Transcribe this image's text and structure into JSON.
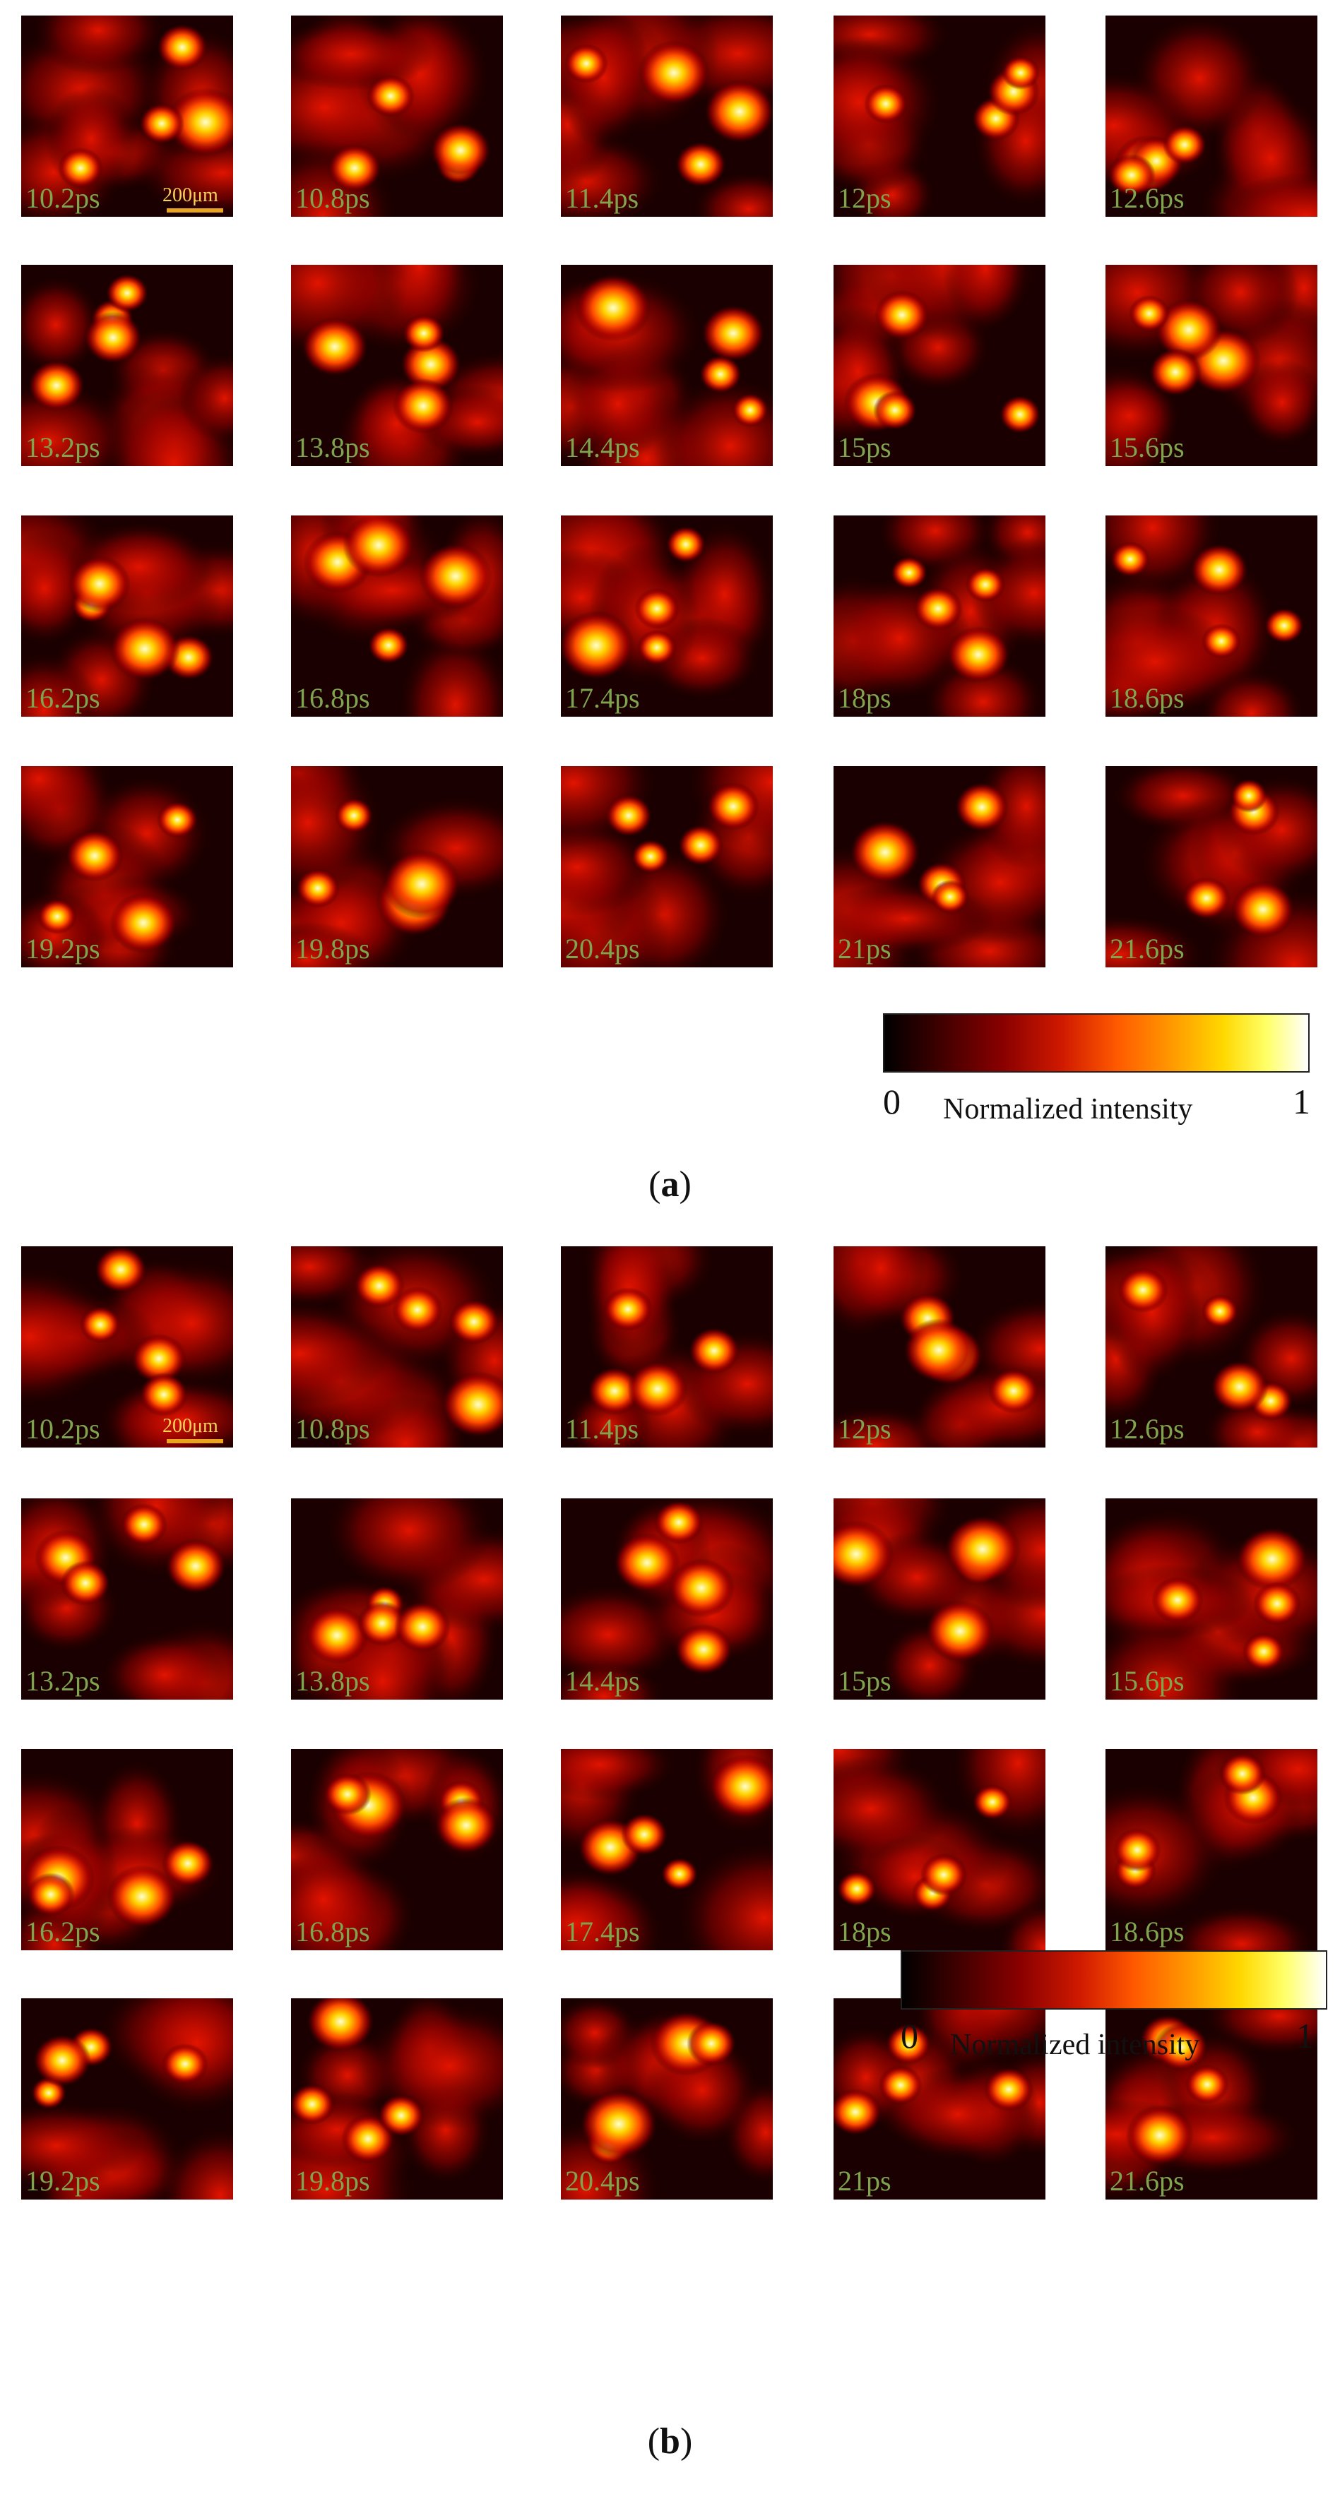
{
  "panel_a": {
    "caption_open": "(",
    "caption_letter": "a",
    "caption_close": ")",
    "scale_bar": "200μm",
    "frames": [
      "10.2ps",
      "10.8ps",
      "11.4ps",
      "12ps",
      "12.6ps",
      "13.2ps",
      "13.8ps",
      "14.4ps",
      "15ps",
      "15.6ps",
      "16.2ps",
      "16.8ps",
      "17.4ps",
      "18ps",
      "18.6ps",
      "19.2ps",
      "19.8ps",
      "20.4ps",
      "21ps",
      "21.6ps"
    ],
    "colorbar": {
      "min": "0",
      "max": "1",
      "title": "Normalized intensity"
    }
  },
  "panel_b": {
    "caption_open": "(",
    "caption_letter": "b",
    "caption_close": ")",
    "scale_bar": "200μm",
    "frames": [
      "10.2ps",
      "10.8ps",
      "11.4ps",
      "12ps",
      "12.6ps",
      "13.2ps",
      "13.8ps",
      "14.4ps",
      "15ps",
      "15.6ps",
      "16.2ps",
      "16.8ps",
      "17.4ps",
      "18ps",
      "18.6ps",
      "19.2ps",
      "19.8ps",
      "20.4ps",
      "21ps",
      "21.6ps"
    ],
    "colorbar": {
      "min": "0",
      "max": "1",
      "title": "Normalized intensity"
    }
  }
}
